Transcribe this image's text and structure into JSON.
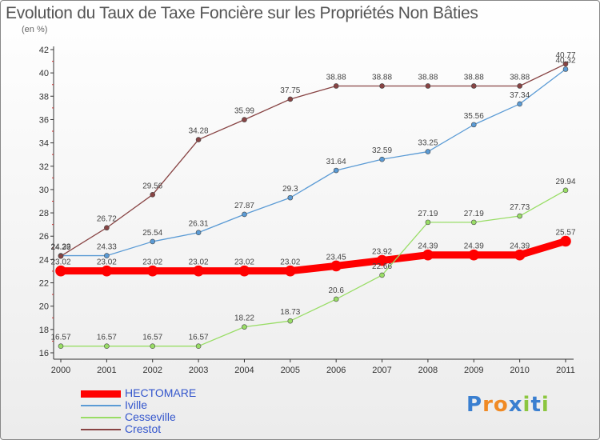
{
  "title": "Evolution du Taux de Taxe Foncière sur les Propriétés Non Bâties",
  "subtitle": "(en %)",
  "logo": "Proxiti",
  "chart_data": {
    "type": "line",
    "x": [
      "2000",
      "2001",
      "2002",
      "2003",
      "2004",
      "2005",
      "2006",
      "2007",
      "2008",
      "2009",
      "2010",
      "2011"
    ],
    "ylim": [
      16,
      42
    ],
    "yticks": [
      16,
      18,
      20,
      22,
      24,
      26,
      28,
      30,
      32,
      34,
      36,
      38,
      40,
      42
    ],
    "grid": false,
    "legend_position": "bottom-left",
    "series": [
      {
        "name": "HECTOMARE",
        "color": "#ff0000",
        "values": [
          23.02,
          23.02,
          23.02,
          23.02,
          23.02,
          23.02,
          23.45,
          23.92,
          24.39,
          24.39,
          24.39,
          25.57
        ],
        "labels": [
          "23.02",
          "23.02",
          "23.02",
          "23.02",
          "23.02",
          "23.02",
          "23.45",
          "23.92",
          "24.39",
          "24.39",
          "24.39",
          "25.57"
        ]
      },
      {
        "name": "Iville",
        "color": "#5b9bd5",
        "values": [
          24.33,
          24.33,
          25.54,
          26.31,
          27.87,
          29.3,
          31.64,
          32.59,
          33.25,
          35.56,
          37.34,
          40.32
        ],
        "labels": [
          "24.33",
          "24.33",
          "25.54",
          "26.31",
          "27.87",
          "29.3",
          "31.64",
          "32.59",
          "33.25",
          "35.56",
          "37.34",
          "40.32"
        ]
      },
      {
        "name": "Cesseville",
        "color": "#99dd66",
        "values": [
          16.57,
          16.57,
          16.57,
          16.57,
          18.22,
          18.73,
          20.6,
          22.66,
          27.19,
          27.19,
          27.73,
          29.94
        ],
        "labels": [
          "16.57",
          "16.57",
          "16.57",
          "16.57",
          "18.22",
          "18.73",
          "20.6",
          "22.66",
          "27.19",
          "27.19",
          "27.73",
          "29.94"
        ]
      },
      {
        "name": "Crestot",
        "color": "#884444",
        "values": [
          24.29,
          26.72,
          29.56,
          34.28,
          35.99,
          37.75,
          38.88,
          38.88,
          38.88,
          38.88,
          38.88,
          40.77
        ],
        "labels": [
          "24.29",
          "26.72",
          "29.56",
          "34.28",
          "35.99",
          "37.75",
          "38.88",
          "38.88",
          "38.88",
          "38.88",
          "38.88",
          "40.77"
        ]
      }
    ]
  }
}
